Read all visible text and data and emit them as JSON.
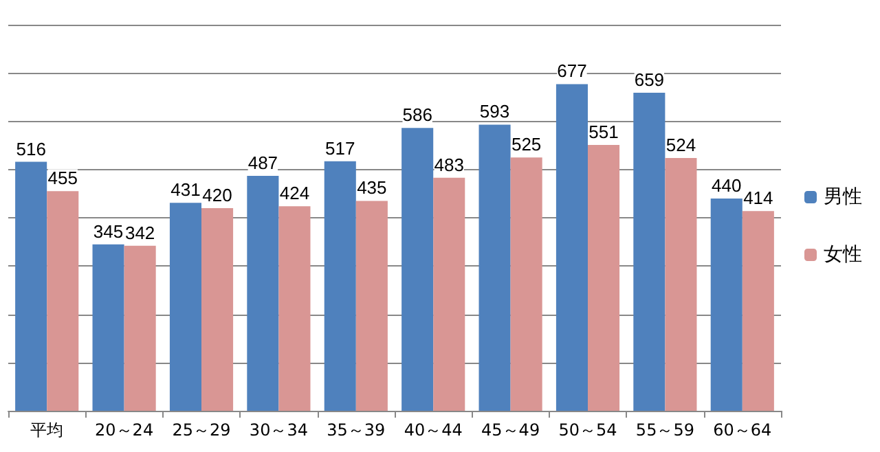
{
  "chart_data": {
    "type": "bar",
    "categories": [
      "平均",
      "20～24",
      "25～29",
      "30～34",
      "35～39",
      "40～44",
      "45～49",
      "50～54",
      "55～59",
      "60～64"
    ],
    "series": [
      {
        "name": "男性",
        "color": "#4f81bd",
        "values": [
          516,
          345,
          431,
          487,
          517,
          586,
          593,
          677,
          659,
          440
        ]
      },
      {
        "name": "女性",
        "color": "#d99694",
        "values": [
          455,
          342,
          420,
          424,
          435,
          483,
          525,
          551,
          524,
          414
        ]
      }
    ],
    "ylim": [
      0,
      800
    ],
    "yticks": [
      {
        "value": 0,
        "label": null
      },
      {
        "value": 100,
        "label": null
      },
      {
        "value": 200,
        "label": null
      },
      {
        "value": 300,
        "label": null
      },
      {
        "value": 400,
        "label": null
      },
      {
        "value": 500,
        "label": null
      },
      {
        "value": 600,
        "label": null
      },
      {
        "value": 700,
        "label": null
      },
      {
        "value": 800,
        "label": null
      }
    ],
    "tick_labels": "x",
    "grid": "y",
    "legend": "right",
    "data_labels": true
  }
}
